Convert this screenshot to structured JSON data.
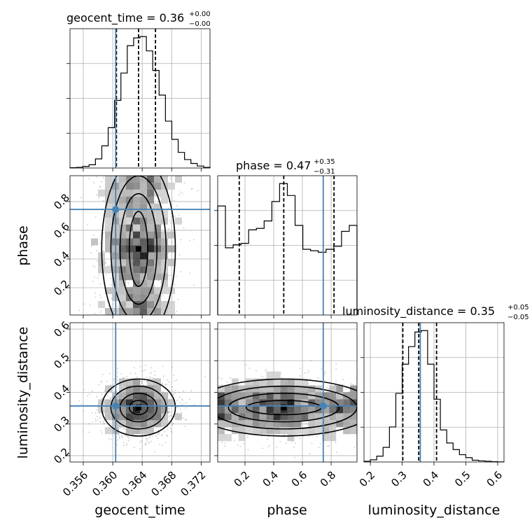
{
  "chart_data": {
    "type": "corner",
    "colors": {
      "truth": "#4682b4",
      "hist": "#000000",
      "grid": "#b0b0b0",
      "density": "#000000"
    },
    "grid": true,
    "parameters": [
      {
        "name": "geocent_time",
        "label": "geocent_time",
        "range": [
          0.3542,
          0.3732
        ],
        "ticks": [
          0.356,
          0.36,
          0.364,
          0.368,
          0.372
        ],
        "tick_labels": [
          "0.356",
          "0.360",
          "0.364",
          "0.368",
          "0.372"
        ],
        "truth": 0.3604,
        "quantiles": [
          0.3605,
          0.3635,
          0.3658
        ],
        "title": {
          "main": "geocent_time = 0.36",
          "sup": "+0.00",
          "sub": "−0.00"
        },
        "hist_edges_range": [
          0.3542,
          0.3732
        ],
        "hist_values": [
          0.2,
          0.5,
          1.2,
          2.5,
          7,
          17,
          31,
          52,
          73,
          94,
          100,
          101,
          90,
          75,
          56,
          36,
          22,
          12,
          6.5,
          3.5,
          1.5,
          0.5
        ]
      },
      {
        "name": "phase",
        "label": "phase",
        "range": [
          0.01,
          0.98
        ],
        "ticks": [
          0.2,
          0.4,
          0.6,
          0.8
        ],
        "tick_labels": [
          "0.2",
          "0.4",
          "0.6",
          "0.8"
        ],
        "truth": 0.745,
        "quantiles": [
          0.16,
          0.47,
          0.82
        ],
        "title": {
          "main": "phase = 0.47",
          "sup": "+0.35",
          "sub": "−0.31"
        },
        "hist_edges_range": [
          0.01,
          0.98
        ],
        "hist_values": [
          73,
          45,
          47,
          48,
          57,
          58,
          63,
          76,
          88,
          80,
          60,
          44,
          43,
          42,
          44,
          46,
          56,
          60
        ]
      },
      {
        "name": "luminosity_distance",
        "label": "luminosity_distance",
        "range": [
          0.18,
          0.62
        ],
        "ticks": [
          0.2,
          0.3,
          0.4,
          0.5,
          0.6
        ],
        "tick_labels": [
          "0.2",
          "0.3",
          "0.4",
          "0.5",
          "0.6"
        ],
        "truth": 0.357,
        "quantiles": [
          0.302,
          0.352,
          0.408
        ],
        "title": {
          "main": "luminosity_distance = 0.35",
          "sup": "+0.05",
          "sub": "−0.05"
        },
        "hist_edges_range": [
          0.18,
          0.62
        ],
        "hist_values": [
          0.5,
          1.5,
          4,
          10,
          24,
          47,
          67,
          79,
          89,
          90,
          67,
          43,
          22,
          13,
          8.5,
          5,
          3,
          1.2,
          0.8,
          0.5,
          0.2,
          0.1
        ]
      }
    ],
    "densities": [
      {
        "x": "geocent_time",
        "y": "phase",
        "x_mean": 0.3635,
        "x_sd": 0.0025,
        "y_mode": 0.47
      },
      {
        "x": "geocent_time",
        "y": "luminosity_distance",
        "x_mean": 0.3635,
        "x_sd": 0.0025,
        "y_mean": 0.352,
        "y_sd": 0.045
      },
      {
        "x": "phase",
        "y": "luminosity_distance",
        "x_mode": 0.47,
        "y_mean": 0.352,
        "y_sd": 0.045
      }
    ]
  }
}
